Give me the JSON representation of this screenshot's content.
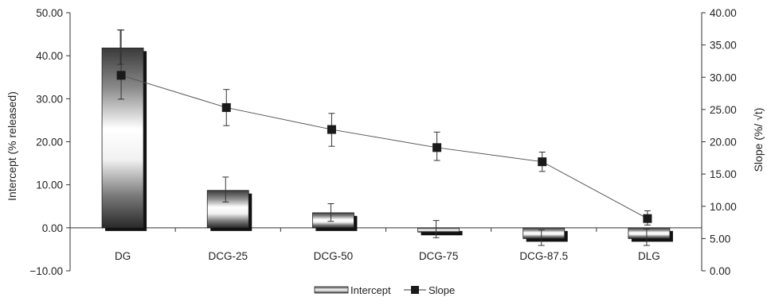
{
  "chart_data": {
    "type": "bar",
    "categories": [
      "DG",
      "DCG-25",
      "DCG-50",
      "DCG-75",
      "DCG-87.5",
      "DLG"
    ],
    "series": [
      {
        "name": "Intercept",
        "type": "bar",
        "axis": "left",
        "values": [
          41.8,
          8.7,
          3.5,
          -1.0,
          -2.5,
          -2.5
        ],
        "error": [
          [
            38.0,
            46.0
          ],
          [
            6.0,
            11.8
          ],
          [
            1.5,
            5.6
          ],
          [
            -2.3,
            1.7
          ],
          [
            -4.1,
            -0.5
          ],
          [
            -4.1,
            -0.3
          ]
        ]
      },
      {
        "name": "Slope",
        "type": "line",
        "axis": "right",
        "values": [
          30.3,
          25.3,
          21.9,
          19.1,
          16.9,
          8.1
        ],
        "error": [
          [
            26.6,
            37.3
          ],
          [
            22.5,
            28.1
          ],
          [
            19.3,
            24.4
          ],
          [
            17.1,
            21.5
          ],
          [
            15.4,
            18.4
          ],
          [
            7.1,
            9.3
          ]
        ]
      }
    ],
    "ylabel": "Intercept (% released)",
    "ylabel_right": "Slope (%/ √t)",
    "ylim": [
      -10,
      50
    ],
    "ylim_right": [
      0,
      40
    ],
    "yticks": [
      "50.00",
      "40.00",
      "30.00",
      "20.00",
      "10.00",
      "0.00",
      "−10.00"
    ],
    "yticks_right": [
      "40.00",
      "35.00",
      "30.00",
      "25.00",
      "20.00",
      "15.00",
      "10.00",
      "5.00",
      "0.00"
    ],
    "grid": false,
    "legend": "bottom-center"
  }
}
